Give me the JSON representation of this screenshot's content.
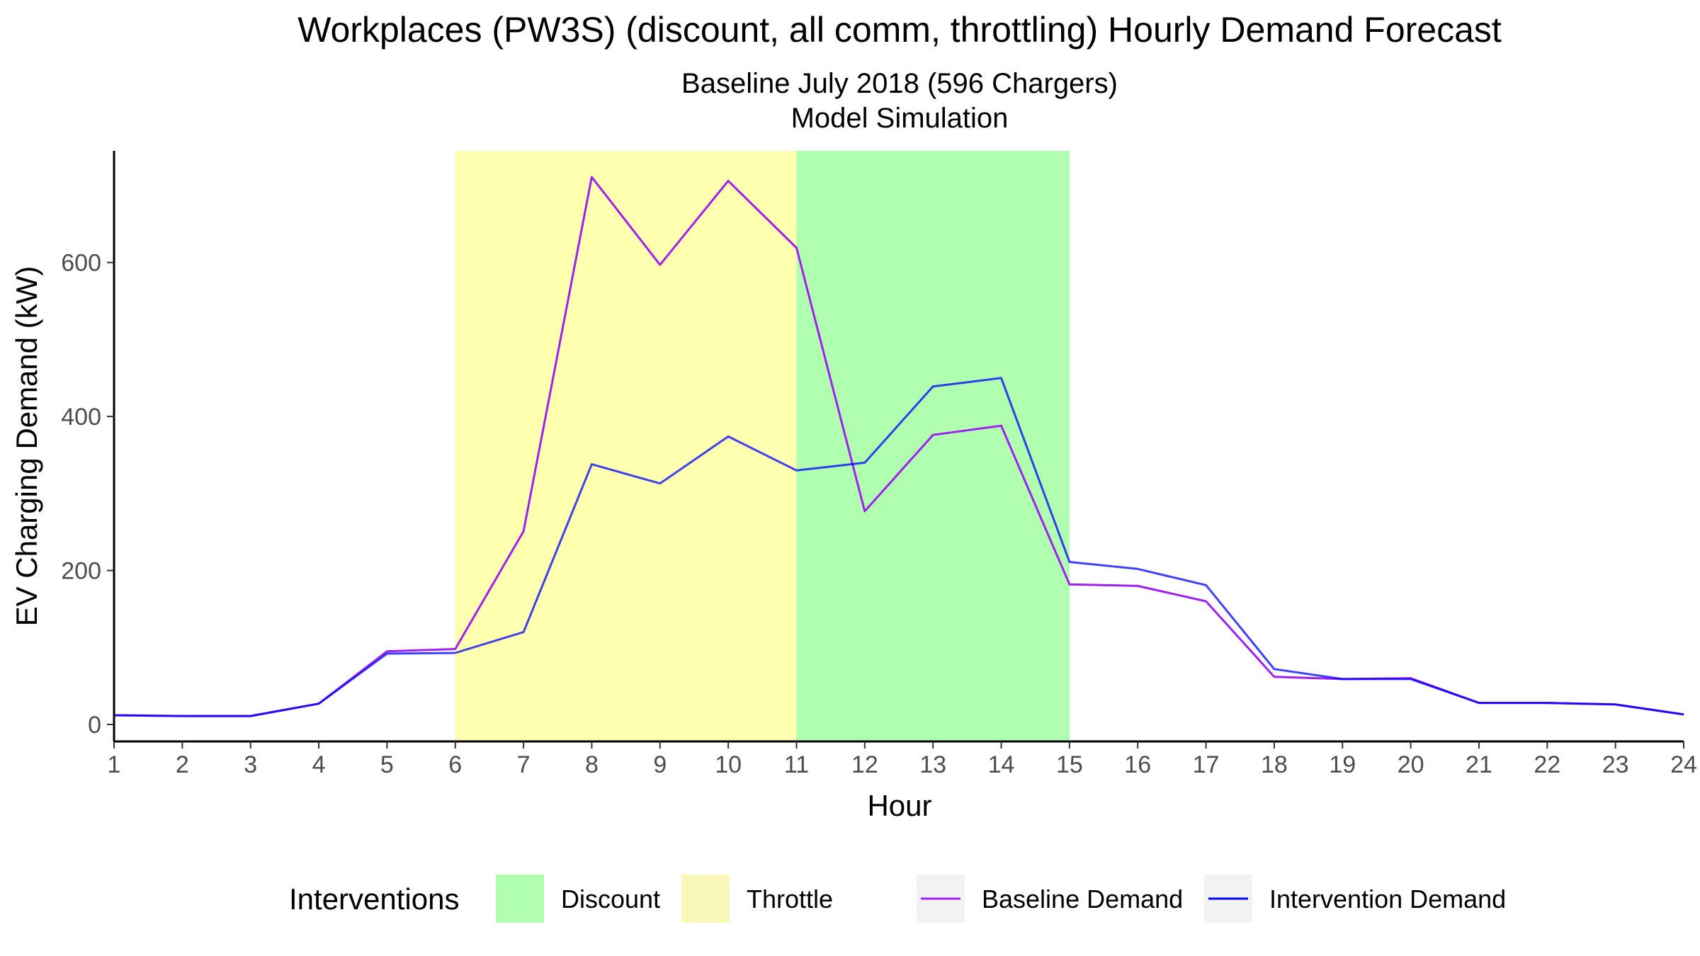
{
  "chart_data": {
    "type": "line",
    "title": "Workplaces (PW3S) (discount, all comm, throttling) Hourly Demand Forecast",
    "subtitle_line1": "Baseline July 2018 (596 Chargers)",
    "subtitle_line2": "Model Simulation",
    "xlabel": "Hour",
    "ylabel": "EV Charging Demand (kW)",
    "xlim": [
      1,
      24
    ],
    "ylim": [
      -22,
      745
    ],
    "x_ticks": [
      1,
      2,
      3,
      4,
      5,
      6,
      7,
      8,
      9,
      10,
      11,
      12,
      13,
      14,
      15,
      16,
      17,
      18,
      19,
      20,
      21,
      22,
      23,
      24
    ],
    "y_ticks": [
      0,
      200,
      400,
      600
    ],
    "grid": false,
    "x": [
      1,
      2,
      3,
      4,
      5,
      6,
      7,
      8,
      9,
      10,
      11,
      12,
      13,
      14,
      15,
      16,
      17,
      18,
      19,
      20,
      21,
      22,
      23,
      24
    ],
    "series": [
      {
        "name": "Baseline Demand",
        "color": "#a020f0",
        "values": [
          12,
          11,
          11,
          27,
          95,
          98,
          251,
          711,
          597,
          706,
          619,
          277,
          376,
          388,
          182,
          180,
          160,
          62,
          59,
          60,
          28,
          28,
          26,
          13
        ]
      },
      {
        "name": "Intervention Demand",
        "color": "#0000ff",
        "values": [
          12,
          11,
          11,
          27,
          92,
          93,
          120,
          338,
          313,
          374,
          330,
          340,
          439,
          450,
          211,
          202,
          181,
          72,
          59,
          59,
          28,
          28,
          26,
          13
        ]
      }
    ],
    "bands": [
      {
        "name": "Throttle",
        "x_start": 6,
        "x_end": 11,
        "color": "#ffffb0"
      },
      {
        "name": "Discount",
        "x_start": 11,
        "x_end": 15,
        "color": "#b0ffb0"
      }
    ],
    "legend": {
      "title": "Interventions",
      "position": "bottom",
      "items": [
        {
          "label": "Discount",
          "kind": "fill",
          "color": "#b0ffb0"
        },
        {
          "label": "Throttle",
          "kind": "fill",
          "color": "#f8f8b8"
        },
        {
          "label": "Baseline Demand",
          "kind": "line",
          "color": "#a020f0"
        },
        {
          "label": "Intervention Demand",
          "kind": "line",
          "color": "#0000ff"
        }
      ]
    }
  }
}
